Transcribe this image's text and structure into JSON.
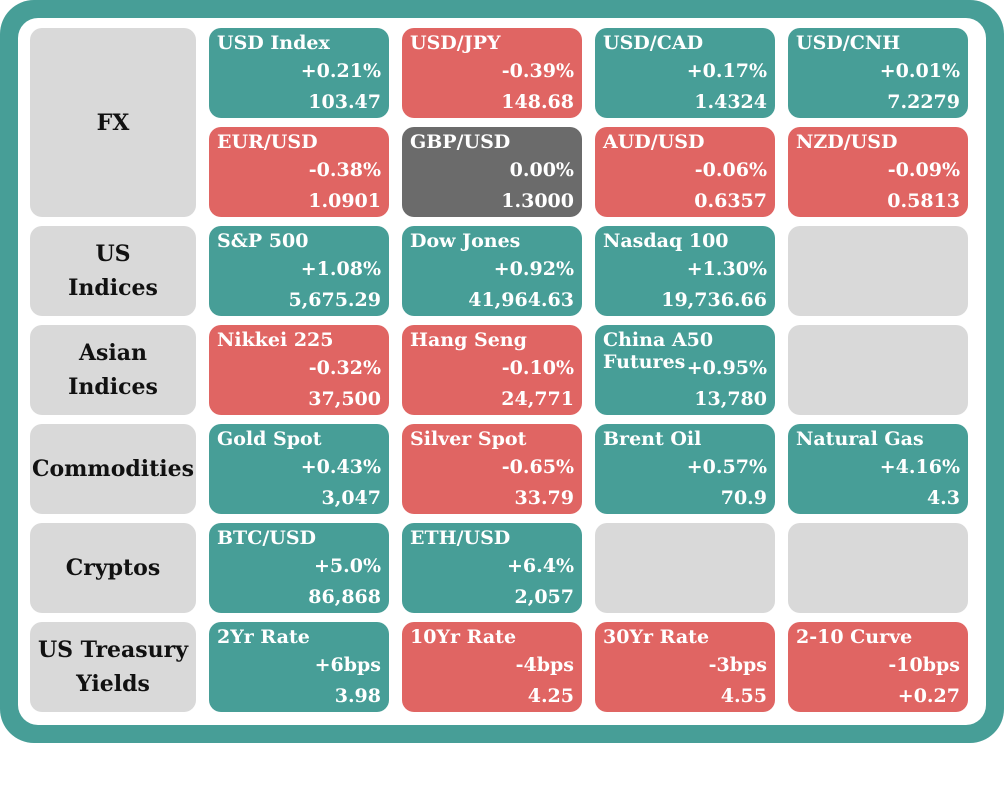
{
  "rows": [
    {
      "category": "FX",
      "tall": true,
      "tiles": [
        {
          "name": "USD Index",
          "change": "+0.21%",
          "value": "103.47",
          "status": "up"
        },
        {
          "name": "USD/JPY",
          "change": "-0.39%",
          "value": "148.68",
          "status": "down"
        },
        {
          "name": "USD/CAD",
          "change": "+0.17%",
          "value": "1.4324",
          "status": "up"
        },
        {
          "name": "USD/CNH",
          "change": "+0.01%",
          "value": "7.2279",
          "status": "up"
        },
        {
          "name": "EUR/USD",
          "change": "-0.38%",
          "value": "1.0901",
          "status": "down"
        },
        {
          "name": "GBP/USD",
          "change": "0.00%",
          "value": "1.3000",
          "status": "flat"
        },
        {
          "name": "AUD/USD",
          "change": "-0.06%",
          "value": "0.6357",
          "status": "down"
        },
        {
          "name": "NZD/USD",
          "change": "-0.09%",
          "value": "0.5813",
          "status": "down"
        }
      ]
    },
    {
      "category": "US\nIndices",
      "tiles": [
        {
          "name": "S&P 500",
          "change": "+1.08%",
          "value": "5,675.29",
          "status": "up"
        },
        {
          "name": "Dow Jones",
          "change": "+0.92%",
          "value": "41,964.63",
          "status": "up"
        },
        {
          "name": "Nasdaq 100",
          "change": "+1.30%",
          "value": "19,736.66",
          "status": "up"
        },
        {
          "status": "empty"
        }
      ]
    },
    {
      "category": "Asian\nIndices",
      "tiles": [
        {
          "name": "Nikkei 225",
          "change": "-0.32%",
          "value": "37,500",
          "status": "down"
        },
        {
          "name": "Hang Seng",
          "change": "-0.10%",
          "value": "24,771",
          "status": "down"
        },
        {
          "name": "China A50\nFutures",
          "change": "+0.95%",
          "value": "13,780",
          "status": "up"
        },
        {
          "status": "empty"
        }
      ]
    },
    {
      "category": "Commodities",
      "tiles": [
        {
          "name": "Gold Spot",
          "change": "+0.43%",
          "value": "3,047",
          "status": "up"
        },
        {
          "name": "Silver Spot",
          "change": "-0.65%",
          "value": "33.79",
          "status": "down"
        },
        {
          "name": "Brent Oil",
          "change": "+0.57%",
          "value": "70.9",
          "status": "up"
        },
        {
          "name": "Natural Gas",
          "change": "+4.16%",
          "value": "4.3",
          "status": "up"
        }
      ]
    },
    {
      "category": "Cryptos",
      "tiles": [
        {
          "name": "BTC/USD",
          "change": "+5.0%",
          "value": "86,868",
          "status": "up"
        },
        {
          "name": "ETH/USD",
          "change": "+6.4%",
          "value": "2,057",
          "status": "up"
        },
        {
          "status": "empty"
        },
        {
          "status": "empty"
        }
      ]
    },
    {
      "category": "US Treasury\nYields",
      "tiles": [
        {
          "name": "2Yr Rate",
          "change": "+6bps",
          "value": "3.98",
          "status": "up"
        },
        {
          "name": "10Yr Rate",
          "change": "-4bps",
          "value": "4.25",
          "status": "down"
        },
        {
          "name": "30Yr Rate",
          "change": "-3bps",
          "value": "4.55",
          "status": "down"
        },
        {
          "name": "2-10 Curve",
          "change": "-10bps",
          "value": "+0.27",
          "status": "down"
        }
      ]
    }
  ],
  "colors": {
    "frame": "#479e97",
    "up": "#479e97",
    "down": "#e06563",
    "flat": "#6b6b6b",
    "empty": "#d9d9d9"
  }
}
